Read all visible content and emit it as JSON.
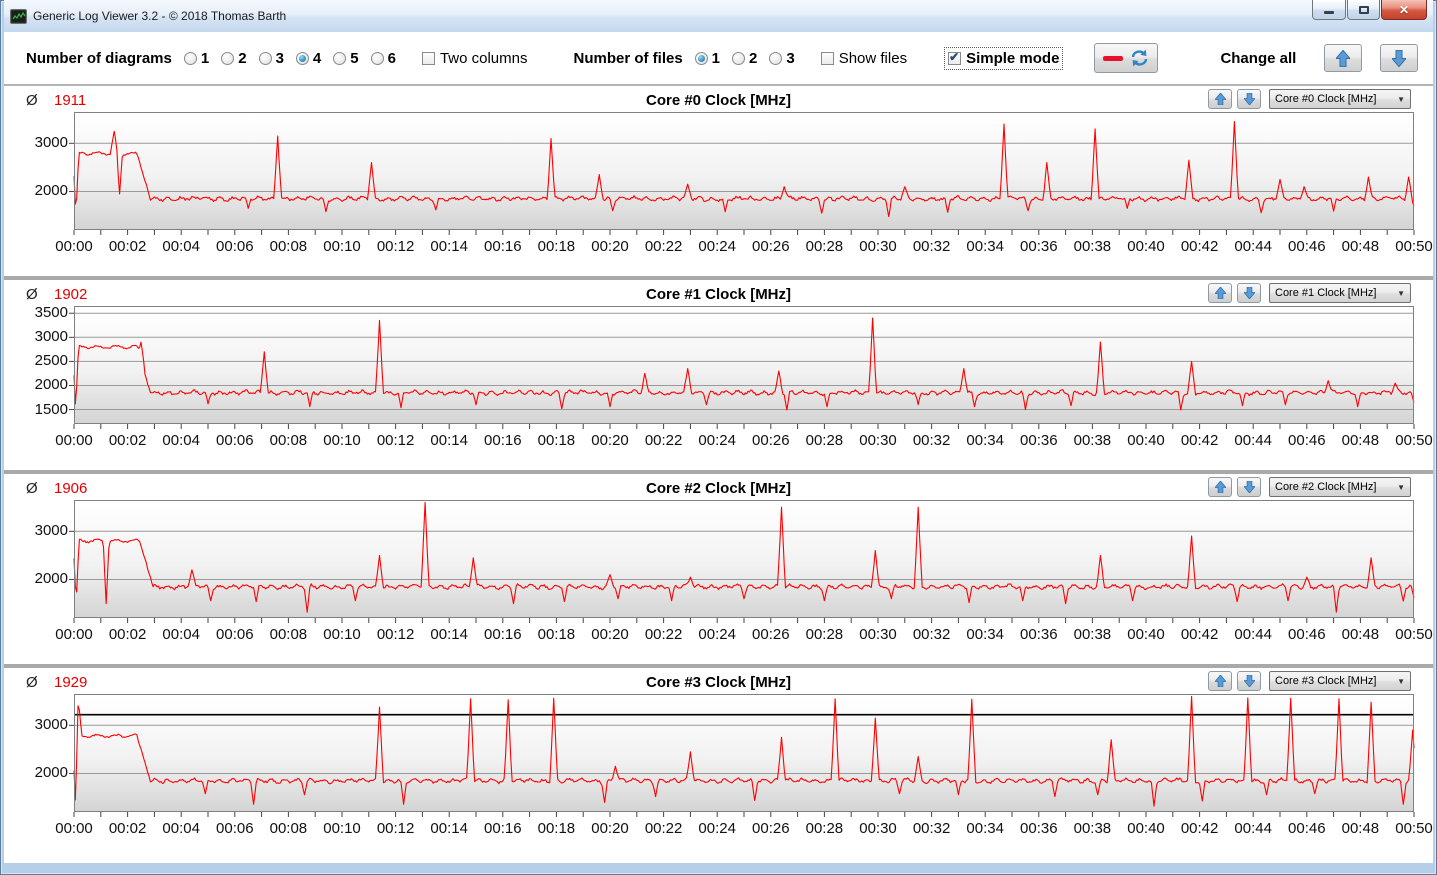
{
  "window": {
    "title": "Generic Log Viewer 3.2 - © 2018 Thomas Barth"
  },
  "titlebar": {
    "minimize": "minimize",
    "maximize": "maximize",
    "close": "close"
  },
  "toolbar": {
    "diagrams_label": "Number of diagrams",
    "diagram_options": [
      "1",
      "2",
      "3",
      "4",
      "5",
      "6"
    ],
    "diagrams_selected": "4",
    "two_columns_label": "Two columns",
    "two_columns_checked": false,
    "files_label": "Number of files",
    "file_options": [
      "1",
      "2",
      "3"
    ],
    "files_selected": "1",
    "show_files_label": "Show files",
    "show_files_checked": false,
    "simple_mode_label": "Simple mode",
    "simple_mode_checked": true,
    "change_all_label": "Change all"
  },
  "colors": {
    "series_red": "#ff0000",
    "average_red": "#e50000",
    "arrow_blue": "#5b9bd5",
    "grid": "#9a9a9a"
  },
  "chart_data": [
    {
      "type": "line",
      "title": "Core #0 Clock [MHz]",
      "average": "1911",
      "avg_symbol": "Ø",
      "selector_value": "Core #0 Clock [MHz]",
      "ylim": [
        1200,
        3650
      ],
      "yticks": [
        3000,
        2000
      ],
      "x_ticks": [
        "00:00",
        "00:02",
        "00:04",
        "00:06",
        "00:08",
        "00:10",
        "00:12",
        "00:14",
        "00:16",
        "00:18",
        "00:20",
        "00:22",
        "00:24",
        "00:26",
        "00:28",
        "00:30",
        "00:32",
        "00:34",
        "00:36",
        "00:38",
        "00:40",
        "00:42",
        "00:44",
        "00:46",
        "00:48",
        "00:50"
      ],
      "x_minutes": [
        0,
        50
      ],
      "baseline": 1850,
      "startup_plateau": {
        "value": 2790,
        "end_min": 2.35
      },
      "seed": 11,
      "line_color": "#ff0000",
      "spikes": [
        [
          1.5,
          3250
        ],
        [
          7.6,
          3150
        ],
        [
          11.1,
          2600
        ],
        [
          17.8,
          3100
        ],
        [
          19.6,
          2350
        ],
        [
          22.9,
          2150
        ],
        [
          26.5,
          2100
        ],
        [
          31.0,
          2100
        ],
        [
          34.7,
          3400
        ],
        [
          36.3,
          2600
        ],
        [
          38.1,
          3300
        ],
        [
          41.6,
          2650
        ],
        [
          43.3,
          3450
        ],
        [
          45.0,
          2250
        ],
        [
          45.9,
          2100
        ],
        [
          48.3,
          2300
        ],
        [
          49.8,
          2300
        ]
      ],
      "dips": [
        [
          0.07,
          1500
        ],
        [
          1.7,
          1950
        ],
        [
          6.5,
          1650
        ],
        [
          9.4,
          1580
        ],
        [
          13.5,
          1620
        ],
        [
          20.1,
          1600
        ],
        [
          24.3,
          1580
        ],
        [
          27.9,
          1550
        ],
        [
          30.4,
          1480
        ],
        [
          32.6,
          1570
        ],
        [
          35.6,
          1600
        ],
        [
          39.3,
          1650
        ],
        [
          44.3,
          1560
        ],
        [
          47.0,
          1590
        ],
        [
          50.0,
          1700
        ]
      ]
    },
    {
      "type": "line",
      "title": "Core #1 Clock [MHz]",
      "average": "1902",
      "avg_symbol": "Ø",
      "selector_value": "Core #1 Clock [MHz]",
      "ylim": [
        1200,
        3650
      ],
      "yticks": [
        3500,
        3000,
        2500,
        2000,
        1500
      ],
      "x_ticks": [
        "00:00",
        "00:02",
        "00:04",
        "00:06",
        "00:08",
        "00:10",
        "00:12",
        "00:14",
        "00:16",
        "00:18",
        "00:20",
        "00:22",
        "00:24",
        "00:26",
        "00:28",
        "00:30",
        "00:32",
        "00:34",
        "00:36",
        "00:38",
        "00:40",
        "00:42",
        "00:44",
        "00:46",
        "00:48",
        "00:50"
      ],
      "x_minutes": [
        0,
        50
      ],
      "baseline": 1850,
      "startup_plateau": {
        "value": 2800,
        "end_min": 2.35
      },
      "seed": 22,
      "line_color": "#ff0000",
      "spikes": [
        [
          2.5,
          2900
        ],
        [
          7.1,
          2700
        ],
        [
          11.4,
          3350
        ],
        [
          21.3,
          2250
        ],
        [
          22.9,
          2350
        ],
        [
          26.3,
          2300
        ],
        [
          29.8,
          3400
        ],
        [
          33.2,
          2350
        ],
        [
          38.3,
          2900
        ],
        [
          41.7,
          2500
        ],
        [
          46.8,
          2100
        ],
        [
          49.3,
          2050
        ]
      ],
      "dips": [
        [
          0.06,
          1500
        ],
        [
          5.0,
          1620
        ],
        [
          8.8,
          1560
        ],
        [
          12.2,
          1540
        ],
        [
          15.0,
          1600
        ],
        [
          18.2,
          1520
        ],
        [
          20.0,
          1560
        ],
        [
          23.6,
          1600
        ],
        [
          26.6,
          1490
        ],
        [
          28.1,
          1560
        ],
        [
          31.5,
          1600
        ],
        [
          33.6,
          1560
        ],
        [
          35.5,
          1500
        ],
        [
          37.2,
          1580
        ],
        [
          41.3,
          1490
        ],
        [
          43.6,
          1580
        ],
        [
          45.2,
          1600
        ],
        [
          47.9,
          1560
        ],
        [
          50.0,
          1650
        ]
      ]
    },
    {
      "type": "line",
      "title": "Core #2 Clock [MHz]",
      "average": "1906",
      "avg_symbol": "Ø",
      "selector_value": "Core #2 Clock [MHz]",
      "ylim": [
        1200,
        3650
      ],
      "yticks": [
        3000,
        2000
      ],
      "x_ticks": [
        "00:00",
        "00:02",
        "00:04",
        "00:06",
        "00:08",
        "00:10",
        "00:12",
        "00:14",
        "00:16",
        "00:18",
        "00:20",
        "00:22",
        "00:24",
        "00:26",
        "00:28",
        "00:30",
        "00:32",
        "00:34",
        "00:36",
        "00:38",
        "00:40",
        "00:42",
        "00:44",
        "00:46",
        "00:48",
        "00:50"
      ],
      "x_minutes": [
        0,
        50
      ],
      "baseline": 1850,
      "startup_plateau": {
        "value": 2800,
        "end_min": 2.45
      },
      "seed": 33,
      "line_color": "#ff0000",
      "spikes": [
        [
          4.4,
          2200
        ],
        [
          11.4,
          2500
        ],
        [
          13.1,
          3600
        ],
        [
          14.9,
          2450
        ],
        [
          20.0,
          2100
        ],
        [
          23.0,
          2050
        ],
        [
          26.4,
          3500
        ],
        [
          29.9,
          2600
        ],
        [
          31.5,
          3500
        ],
        [
          38.3,
          2500
        ],
        [
          41.7,
          2900
        ],
        [
          46.0,
          2050
        ],
        [
          48.4,
          2450
        ]
      ],
      "dips": [
        [
          0.08,
          1500
        ],
        [
          1.2,
          1500
        ],
        [
          5.1,
          1560
        ],
        [
          6.8,
          1540
        ],
        [
          8.7,
          1320
        ],
        [
          10.5,
          1560
        ],
        [
          16.4,
          1500
        ],
        [
          18.3,
          1540
        ],
        [
          20.3,
          1600
        ],
        [
          22.3,
          1560
        ],
        [
          25.0,
          1600
        ],
        [
          28.0,
          1560
        ],
        [
          30.5,
          1600
        ],
        [
          33.4,
          1520
        ],
        [
          35.4,
          1560
        ],
        [
          37.0,
          1500
        ],
        [
          39.5,
          1560
        ],
        [
          43.4,
          1540
        ],
        [
          45.3,
          1560
        ],
        [
          47.1,
          1320
        ],
        [
          49.6,
          1550
        ],
        [
          50.0,
          1620
        ]
      ]
    },
    {
      "type": "line",
      "title": "Core #3 Clock [MHz]",
      "average": "1929",
      "avg_symbol": "Ø",
      "selector_value": "Core #3 Clock [MHz]",
      "ylim": [
        1200,
        3650
      ],
      "yticks": [
        3000,
        2000
      ],
      "limit_line": 3220,
      "x_ticks": [
        "00:00",
        "00:02",
        "00:04",
        "00:06",
        "00:08",
        "00:10",
        "00:12",
        "00:14",
        "00:16",
        "00:18",
        "00:20",
        "00:22",
        "00:24",
        "00:26",
        "00:28",
        "00:30",
        "00:32",
        "00:34",
        "00:36",
        "00:38",
        "00:40",
        "00:42",
        "00:44",
        "00:46",
        "00:48",
        "00:50"
      ],
      "x_minutes": [
        0,
        50
      ],
      "baseline": 1850,
      "startup_plateau": {
        "value": 2780,
        "end_min": 2.35
      },
      "seed": 44,
      "line_color": "#ff0000",
      "spikes": [
        [
          0.15,
          3600
        ],
        [
          11.4,
          3380
        ],
        [
          14.8,
          3550
        ],
        [
          16.2,
          3530
        ],
        [
          17.9,
          3560
        ],
        [
          20.2,
          2150
        ],
        [
          23.0,
          2450
        ],
        [
          26.4,
          2750
        ],
        [
          28.4,
          3550
        ],
        [
          29.9,
          3150
        ],
        [
          31.5,
          2350
        ],
        [
          33.5,
          3540
        ],
        [
          38.7,
          2700
        ],
        [
          41.7,
          3600
        ],
        [
          43.8,
          3570
        ],
        [
          45.4,
          3560
        ],
        [
          47.2,
          3550
        ],
        [
          48.4,
          3480
        ],
        [
          49.95,
          2900
        ]
      ],
      "dips": [
        [
          0.05,
          1450
        ],
        [
          4.9,
          1580
        ],
        [
          6.7,
          1360
        ],
        [
          8.6,
          1560
        ],
        [
          12.3,
          1360
        ],
        [
          19.8,
          1400
        ],
        [
          21.7,
          1520
        ],
        [
          25.4,
          1440
        ],
        [
          30.8,
          1580
        ],
        [
          33.0,
          1560
        ],
        [
          36.6,
          1520
        ],
        [
          38.2,
          1560
        ],
        [
          40.3,
          1320
        ],
        [
          42.1,
          1430
        ],
        [
          44.5,
          1560
        ],
        [
          46.3,
          1580
        ],
        [
          49.6,
          1360
        ]
      ]
    }
  ]
}
